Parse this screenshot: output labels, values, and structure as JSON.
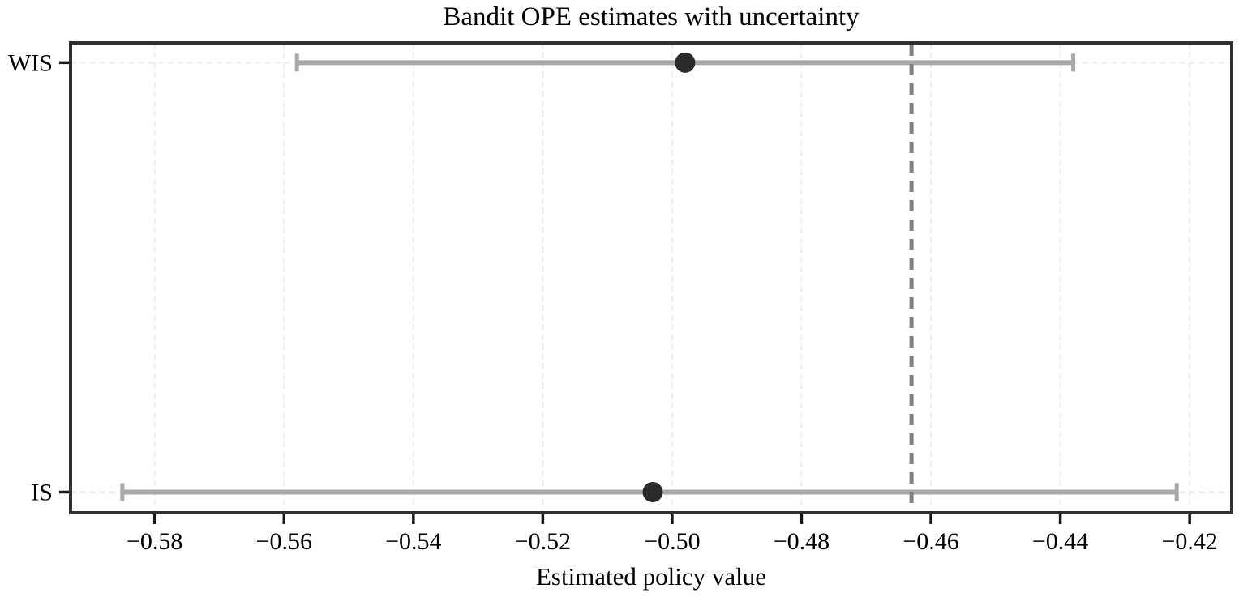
{
  "chart_data": {
    "type": "scatter",
    "subtype": "horizontal_errorbar",
    "title": "Bandit OPE estimates with uncertainty",
    "xlabel": "Estimated policy value",
    "ylabel": "",
    "categories": [
      "WIS",
      "IS"
    ],
    "series": [
      {
        "name": "WIS",
        "estimate": -0.498,
        "ci_low": -0.558,
        "ci_high": -0.438,
        "y_frac": 0.042
      },
      {
        "name": "IS",
        "estimate": -0.503,
        "ci_low": -0.585,
        "ci_high": -0.422,
        "y_frac": 0.956
      }
    ],
    "reference_line": {
      "value": -0.463,
      "orientation": "vertical",
      "style": "dashed"
    },
    "xticks": [
      -0.58,
      -0.56,
      -0.54,
      -0.52,
      -0.5,
      -0.48,
      -0.46,
      -0.44,
      -0.42
    ],
    "xtick_labels": [
      "−0.58",
      "−0.56",
      "−0.54",
      "−0.52",
      "−0.50",
      "−0.48",
      "−0.46",
      "−0.44",
      "−0.42"
    ],
    "xlim": [
      -0.593,
      -0.4135
    ],
    "grid": true,
    "legend": false,
    "colors": {
      "errorbar": "#a9a9a9",
      "marker": "#2b2b2b",
      "reference_line": "#7f7f7f",
      "grid": "#ececec",
      "spine": "#303030",
      "tick": "#1a1a1a",
      "text": "#000000",
      "background": "#ffffff"
    }
  }
}
